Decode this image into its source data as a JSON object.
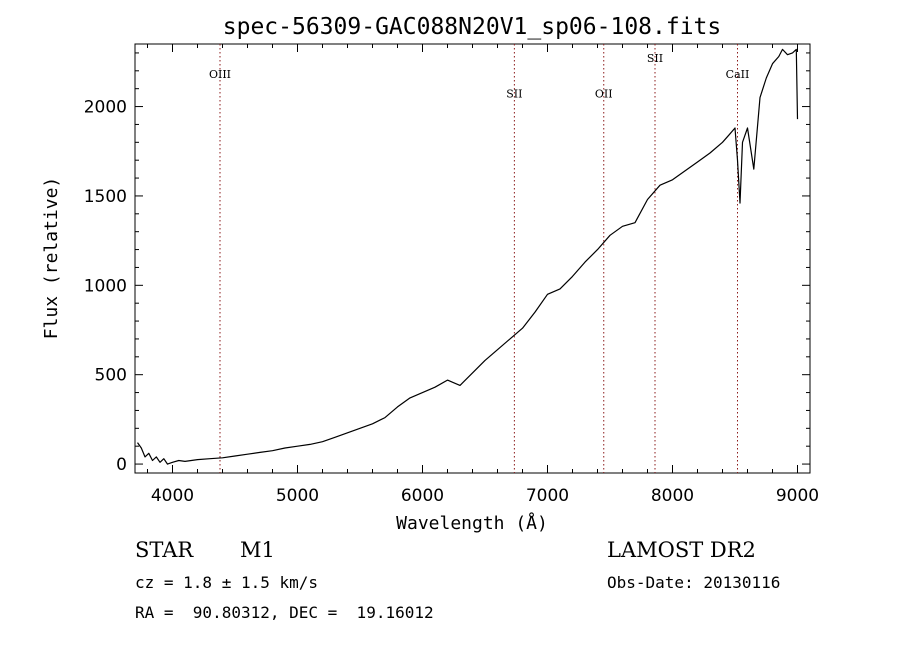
{
  "chart_data": {
    "type": "line",
    "title": "spec-56309-GAC088N20V1_sp06-108.fits",
    "xlabel": "Wavelength (Å)",
    "ylabel": "Flux (relative)",
    "xlim": [
      3700,
      9100
    ],
    "ylim": [
      -50,
      2350
    ],
    "xticks": [
      4000,
      5000,
      6000,
      7000,
      8000,
      9000
    ],
    "yticks": [
      0,
      500,
      1000,
      1500,
      2000
    ],
    "xticklabels": [
      "4000",
      "5000",
      "6000",
      "7000",
      "8000",
      "9000"
    ],
    "yticklabels": [
      "0",
      "500",
      "1000",
      "1500",
      "2000"
    ],
    "grid": false,
    "line_color": "#000000",
    "marker_color": "#8b1a1a",
    "spectral_lines": [
      {
        "label": "OIII",
        "wavelength": 4380,
        "label_flux": 2160
      },
      {
        "label": "SII",
        "wavelength": 6735,
        "label_flux": 2050
      },
      {
        "label": "OII",
        "wavelength": 7450,
        "label_flux": 2050
      },
      {
        "label": "SII",
        "wavelength": 7860,
        "label_flux": 2250
      },
      {
        "label": "CaII",
        "wavelength": 8520,
        "label_flux": 2160
      }
    ],
    "series": [
      {
        "values": [
          [
            3720,
            120
          ],
          [
            3750,
            90
          ],
          [
            3780,
            40
          ],
          [
            3810,
            60
          ],
          [
            3840,
            20
          ],
          [
            3870,
            40
          ],
          [
            3900,
            10
          ],
          [
            3930,
            30
          ],
          [
            3960,
            0
          ],
          [
            4000,
            10
          ],
          [
            4050,
            20
          ],
          [
            4100,
            15
          ],
          [
            4150,
            20
          ],
          [
            4200,
            25
          ],
          [
            4300,
            30
          ],
          [
            4400,
            35
          ],
          [
            4500,
            45
          ],
          [
            4600,
            55
          ],
          [
            4700,
            65
          ],
          [
            4800,
            75
          ],
          [
            4900,
            90
          ],
          [
            5000,
            100
          ],
          [
            5100,
            110
          ],
          [
            5200,
            125
          ],
          [
            5300,
            150
          ],
          [
            5400,
            175
          ],
          [
            5500,
            200
          ],
          [
            5600,
            225
          ],
          [
            5700,
            260
          ],
          [
            5800,
            320
          ],
          [
            5900,
            370
          ],
          [
            6000,
            400
          ],
          [
            6100,
            430
          ],
          [
            6200,
            470
          ],
          [
            6300,
            440
          ],
          [
            6400,
            510
          ],
          [
            6500,
            580
          ],
          [
            6600,
            640
          ],
          [
            6700,
            700
          ],
          [
            6800,
            760
          ],
          [
            6900,
            850
          ],
          [
            7000,
            950
          ],
          [
            7100,
            980
          ],
          [
            7200,
            1050
          ],
          [
            7300,
            1130
          ],
          [
            7400,
            1200
          ],
          [
            7500,
            1280
          ],
          [
            7600,
            1330
          ],
          [
            7700,
            1350
          ],
          [
            7800,
            1480
          ],
          [
            7900,
            1560
          ],
          [
            8000,
            1590
          ],
          [
            8100,
            1640
          ],
          [
            8200,
            1690
          ],
          [
            8300,
            1740
          ],
          [
            8400,
            1800
          ],
          [
            8450,
            1840
          ],
          [
            8500,
            1880
          ],
          [
            8520,
            1700
          ],
          [
            8540,
            1460
          ],
          [
            8560,
            1800
          ],
          [
            8600,
            1880
          ],
          [
            8650,
            1650
          ],
          [
            8700,
            2050
          ],
          [
            8750,
            2160
          ],
          [
            8800,
            2240
          ],
          [
            8850,
            2280
          ],
          [
            8880,
            2320
          ],
          [
            8920,
            2290
          ],
          [
            8960,
            2300
          ],
          [
            8990,
            2320
          ],
          [
            9000,
            1930
          ]
        ]
      }
    ]
  },
  "info": {
    "object_type": "STAR",
    "subclass": "M1",
    "survey": "LAMOST DR2",
    "redshift": "cz = 1.8 ± 1.5 km/s",
    "coords": "RA =  90.80312, DEC =  19.16012",
    "obs_date": "Obs-Date: 20130116"
  }
}
